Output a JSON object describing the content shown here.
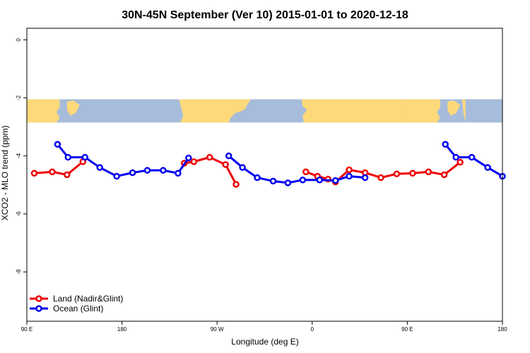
{
  "chart_data": {
    "type": "line",
    "title": "30N-45N September (Ver 10)   2015-01-01 to 2020-12-18",
    "xlabel": "Longitude (deg E)",
    "ylabel": "XCO2 - MLO trend (ppm)",
    "xlim": [
      90,
      540
    ],
    "ylim": [
      -9.7,
      0.4
    ],
    "x_ticks": [
      {
        "value": 90,
        "label": "90 E"
      },
      {
        "value": 180,
        "label": "180"
      },
      {
        "value": 270,
        "label": "90 W"
      },
      {
        "value": 360,
        "label": "0"
      },
      {
        "value": 450,
        "label": "90 E"
      },
      {
        "value": 540,
        "label": "180"
      }
    ],
    "y_ticks": [
      {
        "value": 0,
        "label": "0"
      },
      {
        "value": -2,
        "label": "-2"
      },
      {
        "value": -4,
        "label": "-4"
      },
      {
        "value": -6,
        "label": "-6"
      },
      {
        "value": -8,
        "label": "-8"
      }
    ],
    "map_band": {
      "ymin": -2.85,
      "ymax": -2.05,
      "ocean_color": "#a7bcdb",
      "land_color": "#fdd97a"
    },
    "grid": false,
    "legend": {
      "position": "bottom-left"
    },
    "series": [
      {
        "name": "Land (Nadir&Glint)",
        "color": "#ee0000",
        "segments": [
          [
            [
              97,
              -4.6
            ],
            [
              114,
              -4.55
            ],
            [
              128,
              -4.65
            ],
            [
              143,
              -4.2
            ]
          ],
          [
            [
              239,
              -4.25
            ],
            [
              248,
              -4.2
            ],
            [
              263,
              -4.05
            ],
            [
              278,
              -4.3
            ],
            [
              288,
              -4.98
            ]
          ],
          [
            [
              354,
              -4.55
            ],
            [
              365,
              -4.7
            ],
            [
              375,
              -4.8
            ],
            [
              382,
              -4.9
            ],
            [
              395,
              -4.48
            ],
            [
              410,
              -4.58
            ],
            [
              425,
              -4.75
            ],
            [
              440,
              -4.62
            ],
            [
              455,
              -4.6
            ],
            [
              470,
              -4.55
            ],
            [
              485,
              -4.65
            ],
            [
              500,
              -4.22
            ]
          ]
        ]
      },
      {
        "name": "Ocean (Glint)",
        "color": "#0000ee",
        "segments": [
          [
            [
              119,
              -3.6
            ],
            [
              129,
              -4.05
            ],
            [
              145,
              -4.05
            ],
            [
              159,
              -4.4
            ],
            [
              175,
              -4.7
            ],
            [
              190,
              -4.58
            ],
            [
              204,
              -4.5
            ],
            [
              219,
              -4.5
            ],
            [
              233,
              -4.6
            ],
            [
              243,
              -4.07
            ]
          ],
          [
            [
              281,
              -4.0
            ],
            [
              294,
              -4.4
            ],
            [
              308,
              -4.75
            ],
            [
              323,
              -4.87
            ],
            [
              337,
              -4.93
            ],
            [
              351,
              -4.83
            ],
            [
              367,
              -4.83
            ],
            [
              382,
              -4.85
            ],
            [
              395,
              -4.7
            ],
            [
              410,
              -4.75
            ]
          ],
          [
            [
              486,
              -3.6
            ],
            [
              496,
              -4.05
            ],
            [
              511,
              -4.05
            ],
            [
              526,
              -4.4
            ],
            [
              540,
              -4.7
            ]
          ]
        ]
      }
    ]
  }
}
